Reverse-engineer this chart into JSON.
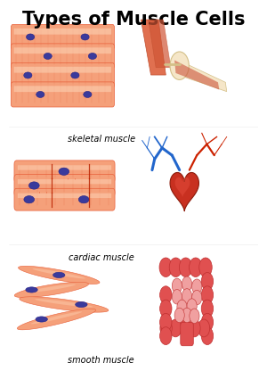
{
  "title": "Types of Muscle Cells",
  "title_fontsize": 15,
  "title_fontweight": "bold",
  "bg_color": "#ffffff",
  "labels": [
    "skeletal muscle",
    "cardiac muscle",
    "smooth muscle"
  ],
  "label_fontsize": 7,
  "muscle_color_outer": "#e8603a",
  "muscle_color_inner": "#f5a07a",
  "muscle_color_light": "#fdd5b8",
  "nucleus_color": "#3a3a9c",
  "colon_color": "#c03030",
  "colon_light": "#e05050",
  "colon_inner": "#f0a0a0",
  "heart_color": "#c83020",
  "heart_edge": "#8b1a0a",
  "vessel_blue": "#2266cc",
  "vessel_red": "#cc2200",
  "bone_color": "#f5e6c8",
  "bone_edge": "#d4c088",
  "tendon_color": "#d4c088",
  "arm_color": "#e07050",
  "arm_edge": "#c05030"
}
